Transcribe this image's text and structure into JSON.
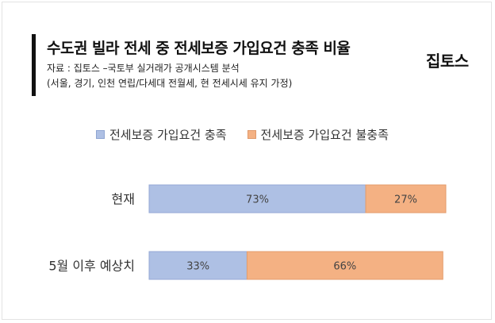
{
  "header": {
    "title": "수도권 빌라 전세 중 전세보증 가입요건 충족 비율",
    "source": "자료 : 집토스 –국토부 실거래가 공개시스템 분석",
    "note": "(서울, 경기, 인천 연립/다세대 전월세, 현 전세시세 유지 가정)",
    "brand": "집토스"
  },
  "chart_data": {
    "type": "bar",
    "orientation": "horizontal",
    "stacked": true,
    "categories": [
      "현재",
      "5월 이후 예상치"
    ],
    "series": [
      {
        "name": "전세보증 가입요건 충족",
        "values": [
          73,
          33
        ],
        "labels": [
          "73%",
          "33%"
        ],
        "color": "#aec0e4"
      },
      {
        "name": "전세보증 가입요건 불충족",
        "values": [
          27,
          66
        ],
        "labels": [
          "27%",
          "66%"
        ],
        "color": "#f4b183"
      }
    ],
    "xlim": [
      0,
      100
    ],
    "legend": "top",
    "grid": false
  }
}
